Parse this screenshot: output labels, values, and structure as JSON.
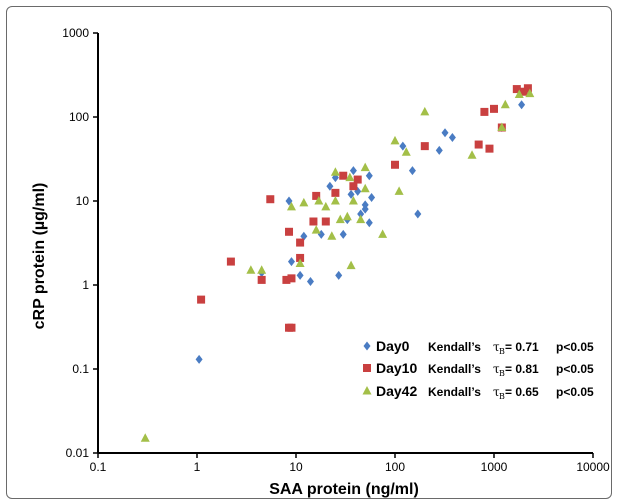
{
  "chart_data": {
    "type": "scatter",
    "xlabel": "SAA protein (ng/ml)",
    "ylabel": "cRP protein (µg/ml)",
    "x_scale": "log",
    "y_scale": "log",
    "xlim": [
      0.1,
      10000
    ],
    "ylim": [
      0.01,
      1000
    ],
    "x_ticks": [
      "0.1",
      "1",
      "10",
      "100",
      "1000",
      "10000"
    ],
    "y_ticks": [
      "0.01",
      "0.1",
      "1",
      "10",
      "100",
      "1000"
    ],
    "grid": false,
    "legend_position": "bottom-right",
    "series": [
      {
        "name": "Day0",
        "stat_label": "Kendall’s",
        "stat_symbol": "τ",
        "stat_sub": "B",
        "stat_value": "= 0.71",
        "p_value": "p<0.05",
        "color": "#4a7cc3",
        "marker": "diamond",
        "points": [
          [
            1.05,
            0.13
          ],
          [
            4.5,
            1.4
          ],
          [
            8.5,
            10
          ],
          [
            9,
            1.9
          ],
          [
            11,
            1.3
          ],
          [
            12,
            3.8
          ],
          [
            14,
            1.1
          ],
          [
            18,
            4
          ],
          [
            22,
            15
          ],
          [
            25,
            19
          ],
          [
            27,
            1.3
          ],
          [
            30,
            4
          ],
          [
            33,
            6
          ],
          [
            36,
            12
          ],
          [
            38,
            23
          ],
          [
            42,
            13
          ],
          [
            45,
            7
          ],
          [
            50,
            8
          ],
          [
            50,
            9
          ],
          [
            55,
            20
          ],
          [
            58,
            11
          ],
          [
            55,
            5.5
          ],
          [
            120,
            45
          ],
          [
            150,
            23
          ],
          [
            170,
            7
          ],
          [
            280,
            40
          ],
          [
            320,
            65
          ],
          [
            380,
            57
          ],
          [
            1200,
            75
          ],
          [
            1900,
            140
          ]
        ]
      },
      {
        "name": "Day10",
        "stat_label": "Kendall’s",
        "stat_symbol": "τ",
        "stat_sub": "B",
        "stat_value": "= 0.81",
        "p_value": "p<0.05",
        "color": "#c94040",
        "marker": "square",
        "points": [
          [
            1.1,
            0.67
          ],
          [
            2.2,
            1.9
          ],
          [
            4.5,
            1.15
          ],
          [
            5.5,
            10.5
          ],
          [
            8,
            1.15
          ],
          [
            8.5,
            4.3
          ],
          [
            9,
            1.2
          ],
          [
            8.5,
            0.31
          ],
          [
            9,
            0.31
          ],
          [
            11,
            2.1
          ],
          [
            11,
            3.2
          ],
          [
            15,
            5.7
          ],
          [
            16,
            11.5
          ],
          [
            20,
            5.7
          ],
          [
            25,
            12.5
          ],
          [
            30,
            20
          ],
          [
            38,
            15
          ],
          [
            42,
            18
          ],
          [
            100,
            27
          ],
          [
            200,
            45
          ],
          [
            700,
            47
          ],
          [
            800,
            115
          ],
          [
            900,
            42
          ],
          [
            1000,
            125
          ],
          [
            1200,
            75
          ],
          [
            1700,
            215
          ],
          [
            2000,
            200
          ],
          [
            2200,
            220
          ]
        ]
      },
      {
        "name": "Day42",
        "stat_label": "Kendall’s",
        "stat_symbol": "τ",
        "stat_sub": "B",
        "stat_value": "= 0.65",
        "p_value": "p<0.05",
        "color": "#a3bf48",
        "marker": "triangle",
        "points": [
          [
            0.3,
            0.015
          ],
          [
            3.5,
            1.5
          ],
          [
            4.5,
            1.5
          ],
          [
            9,
            8.5
          ],
          [
            11,
            1.8
          ],
          [
            12,
            9.5
          ],
          [
            16,
            4.5
          ],
          [
            17,
            10
          ],
          [
            20,
            8.5
          ],
          [
            23,
            3.8
          ],
          [
            25,
            10
          ],
          [
            25,
            22
          ],
          [
            28,
            6
          ],
          [
            33,
            6.5
          ],
          [
            35,
            19
          ],
          [
            36,
            1.7
          ],
          [
            38,
            10
          ],
          [
            45,
            6
          ],
          [
            50,
            25
          ],
          [
            50,
            14
          ],
          [
            75,
            4
          ],
          [
            100,
            52
          ],
          [
            110,
            13
          ],
          [
            130,
            38
          ],
          [
            200,
            115
          ],
          [
            600,
            35
          ],
          [
            1200,
            75
          ],
          [
            1300,
            140
          ],
          [
            1800,
            185
          ],
          [
            2300,
            190
          ]
        ]
      }
    ]
  }
}
